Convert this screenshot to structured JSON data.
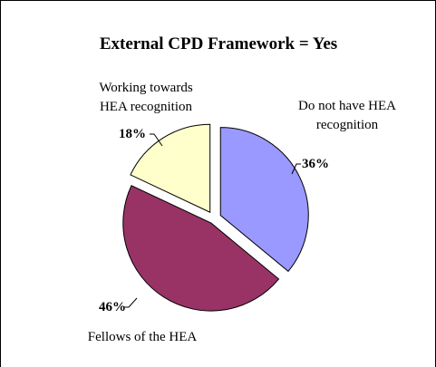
{
  "chart_data": {
    "type": "pie",
    "title": "External CPD Framework = Yes",
    "slices": [
      {
        "label_lines": [
          "Do not have HEA",
          "recognition"
        ],
        "value": 36,
        "value_label": "36%",
        "color": "#9999ff"
      },
      {
        "label_lines": [
          "Fellows of the HEA"
        ],
        "value": 46,
        "value_label": "46%",
        "color": "#993366"
      },
      {
        "label_lines": [
          "Working towards",
          "HEA recognition"
        ],
        "value": 18,
        "value_label": "18%",
        "color": "#ffffcc"
      }
    ],
    "start_angle_deg": 0,
    "direction": "clockwise",
    "exploded": true,
    "slice_border_color": "#000000"
  }
}
